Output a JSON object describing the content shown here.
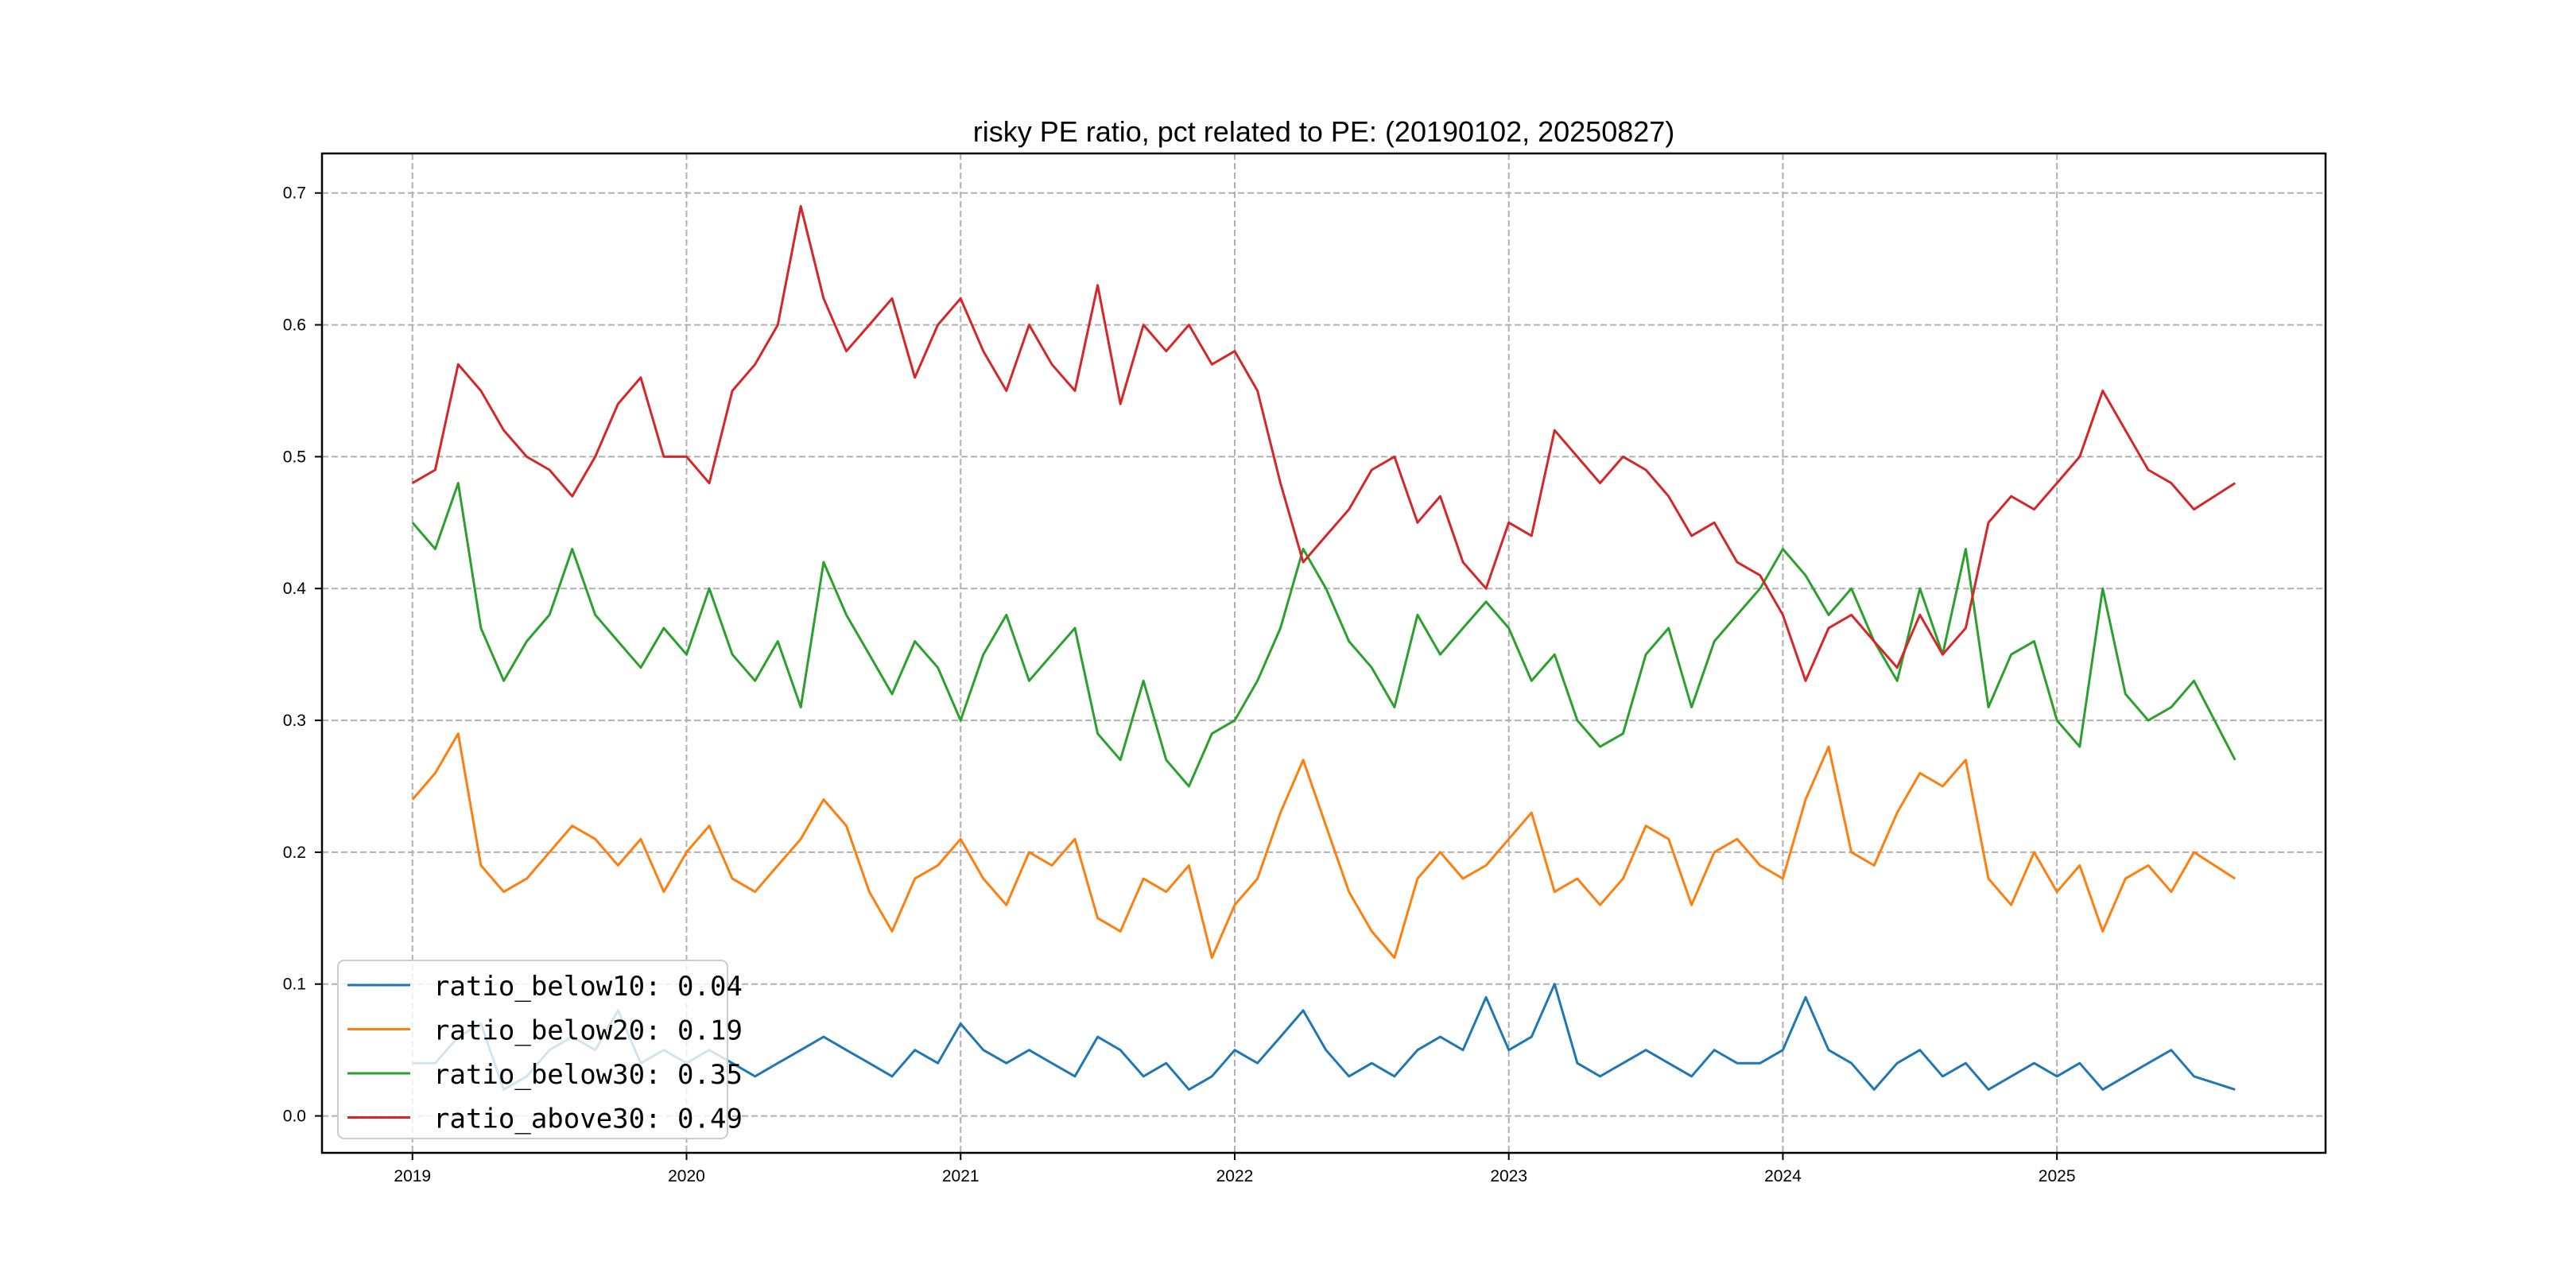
{
  "chart_data": {
    "type": "line",
    "title": "risky PE ratio, pct related to PE: (20190102, 20250827)",
    "xlabel": "",
    "ylabel": "",
    "xlim": [
      2018.67,
      2025.98
    ],
    "ylim": [
      -0.028,
      0.73
    ],
    "grid": true,
    "legend_position": "lower-left",
    "x_ticks": [
      2019,
      2020,
      2021,
      2022,
      2023,
      2024,
      2025
    ],
    "x_tick_labels": [
      "2019",
      "2020",
      "2021",
      "2022",
      "2023",
      "2024",
      "2025"
    ],
    "y_ticks": [
      0.0,
      0.1,
      0.2,
      0.3,
      0.4,
      0.5,
      0.6,
      0.7
    ],
    "y_tick_labels": [
      "0.0",
      "0.1",
      "0.2",
      "0.3",
      "0.4",
      "0.5",
      "0.6",
      "0.7"
    ],
    "x": [
      2019.0,
      2019.083,
      2019.167,
      2019.25,
      2019.333,
      2019.417,
      2019.5,
      2019.583,
      2019.667,
      2019.75,
      2019.833,
      2019.917,
      2020.0,
      2020.083,
      2020.167,
      2020.25,
      2020.333,
      2020.417,
      2020.5,
      2020.583,
      2020.667,
      2020.75,
      2020.833,
      2020.917,
      2021.0,
      2021.083,
      2021.167,
      2021.25,
      2021.333,
      2021.417,
      2021.5,
      2021.583,
      2021.667,
      2021.75,
      2021.833,
      2021.917,
      2022.0,
      2022.083,
      2022.167,
      2022.25,
      2022.333,
      2022.417,
      2022.5,
      2022.583,
      2022.667,
      2022.75,
      2022.833,
      2022.917,
      2023.0,
      2023.083,
      2023.167,
      2023.25,
      2023.333,
      2023.417,
      2023.5,
      2023.583,
      2023.667,
      2023.75,
      2023.833,
      2023.917,
      2024.0,
      2024.083,
      2024.167,
      2024.25,
      2024.333,
      2024.417,
      2024.5,
      2024.583,
      2024.667,
      2024.75,
      2024.833,
      2024.917,
      2025.0,
      2025.083,
      2025.167,
      2025.25,
      2025.333,
      2025.417,
      2025.5,
      2025.65
    ],
    "series": [
      {
        "name": "ratio_below10",
        "legend_label": "ratio_below10: 0.04",
        "color": "#1f77b4",
        "values": [
          0.04,
          0.04,
          0.06,
          0.07,
          0.02,
          0.03,
          0.05,
          0.06,
          0.05,
          0.08,
          0.04,
          0.05,
          0.04,
          0.05,
          0.04,
          0.03,
          0.04,
          0.05,
          0.06,
          0.05,
          0.04,
          0.03,
          0.05,
          0.04,
          0.07,
          0.05,
          0.04,
          0.05,
          0.04,
          0.03,
          0.06,
          0.05,
          0.03,
          0.04,
          0.02,
          0.03,
          0.05,
          0.04,
          0.06,
          0.08,
          0.05,
          0.03,
          0.04,
          0.03,
          0.05,
          0.06,
          0.05,
          0.09,
          0.05,
          0.06,
          0.1,
          0.04,
          0.03,
          0.04,
          0.05,
          0.04,
          0.03,
          0.05,
          0.04,
          0.04,
          0.05,
          0.09,
          0.05,
          0.04,
          0.02,
          0.04,
          0.05,
          0.03,
          0.04,
          0.02,
          0.03,
          0.04,
          0.03,
          0.04,
          0.02,
          0.03,
          0.04,
          0.05,
          0.03,
          0.02
        ]
      },
      {
        "name": "ratio_below20",
        "legend_label": "ratio_below20: 0.19",
        "color": "#ff7f0e",
        "values": [
          0.24,
          0.26,
          0.29,
          0.19,
          0.17,
          0.18,
          0.2,
          0.22,
          0.21,
          0.19,
          0.21,
          0.17,
          0.2,
          0.22,
          0.18,
          0.17,
          0.19,
          0.21,
          0.24,
          0.22,
          0.17,
          0.14,
          0.18,
          0.19,
          0.21,
          0.18,
          0.16,
          0.2,
          0.19,
          0.21,
          0.15,
          0.14,
          0.18,
          0.17,
          0.19,
          0.12,
          0.16,
          0.18,
          0.23,
          0.27,
          0.22,
          0.17,
          0.14,
          0.12,
          0.18,
          0.2,
          0.18,
          0.19,
          0.21,
          0.23,
          0.17,
          0.18,
          0.16,
          0.18,
          0.22,
          0.21,
          0.16,
          0.2,
          0.21,
          0.19,
          0.18,
          0.24,
          0.28,
          0.2,
          0.19,
          0.23,
          0.26,
          0.25,
          0.27,
          0.18,
          0.16,
          0.2,
          0.17,
          0.19,
          0.14,
          0.18,
          0.19,
          0.17,
          0.2,
          0.18
        ]
      },
      {
        "name": "ratio_below30",
        "legend_label": "ratio_below30: 0.35",
        "color": "#2ca02c",
        "values": [
          0.45,
          0.43,
          0.48,
          0.37,
          0.33,
          0.36,
          0.38,
          0.43,
          0.38,
          0.36,
          0.34,
          0.37,
          0.35,
          0.4,
          0.35,
          0.33,
          0.36,
          0.31,
          0.42,
          0.38,
          0.35,
          0.32,
          0.36,
          0.34,
          0.3,
          0.35,
          0.38,
          0.33,
          0.35,
          0.37,
          0.29,
          0.27,
          0.33,
          0.27,
          0.25,
          0.29,
          0.3,
          0.33,
          0.37,
          0.43,
          0.4,
          0.36,
          0.34,
          0.31,
          0.38,
          0.35,
          0.37,
          0.39,
          0.37,
          0.33,
          0.35,
          0.3,
          0.28,
          0.29,
          0.35,
          0.37,
          0.31,
          0.36,
          0.38,
          0.4,
          0.43,
          0.41,
          0.38,
          0.4,
          0.36,
          0.33,
          0.4,
          0.35,
          0.43,
          0.31,
          0.35,
          0.36,
          0.3,
          0.28,
          0.4,
          0.32,
          0.3,
          0.31,
          0.33,
          0.27
        ]
      },
      {
        "name": "ratio_above30",
        "legend_label": "ratio_above30: 0.49",
        "color": "#d62728",
        "values": [
          0.48,
          0.49,
          0.57,
          0.55,
          0.52,
          0.5,
          0.49,
          0.47,
          0.5,
          0.54,
          0.56,
          0.5,
          0.5,
          0.48,
          0.55,
          0.57,
          0.6,
          0.69,
          0.62,
          0.58,
          0.6,
          0.62,
          0.56,
          0.6,
          0.62,
          0.58,
          0.55,
          0.6,
          0.57,
          0.55,
          0.63,
          0.54,
          0.6,
          0.58,
          0.6,
          0.57,
          0.58,
          0.55,
          0.48,
          0.42,
          0.44,
          0.46,
          0.49,
          0.5,
          0.45,
          0.47,
          0.42,
          0.4,
          0.45,
          0.44,
          0.52,
          0.5,
          0.48,
          0.5,
          0.49,
          0.47,
          0.44,
          0.45,
          0.42,
          0.41,
          0.38,
          0.33,
          0.37,
          0.38,
          0.36,
          0.34,
          0.38,
          0.35,
          0.37,
          0.45,
          0.47,
          0.46,
          0.48,
          0.5,
          0.55,
          0.52,
          0.49,
          0.48,
          0.46,
          0.48
        ]
      }
    ]
  }
}
